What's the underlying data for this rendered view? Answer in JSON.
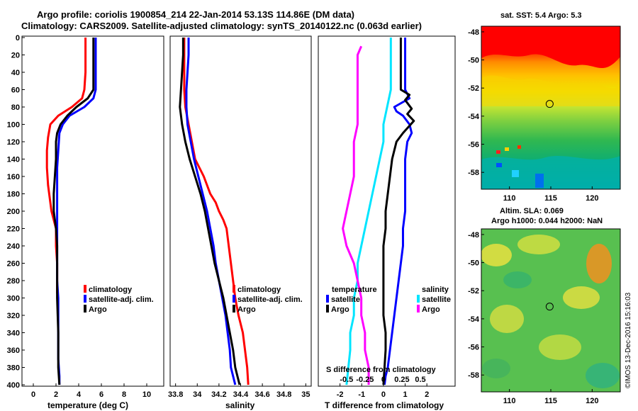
{
  "header": {
    "title_line1": "Argo profile: coriolis 1900854_214 22-Jan-2014 53.13S 114.86E (DM data)",
    "title_line2": "Climatology: CARS2009. Satellite-adjusted climatology: synTS_20140122.nc (0.063d earlier)"
  },
  "colors": {
    "climatology": "#ff0000",
    "satellite": "#0000ff",
    "argo": "#000000",
    "sal_satellite": "#00e5ff",
    "sal_argo": "#ff00ff"
  },
  "chart_data": [
    {
      "id": "temperature",
      "type": "line",
      "xlabel": "temperature (deg C)",
      "ylabel": "pressure",
      "xlim": [
        -1,
        11.5
      ],
      "ylim": [
        400,
        0
      ],
      "x_ticks": [
        0,
        2,
        4,
        6,
        8,
        10
      ],
      "x_tick_labels": [
        "0",
        "2",
        "4",
        "6",
        "8",
        "10"
      ],
      "y_ticks": [
        0,
        20,
        40,
        60,
        80,
        100,
        120,
        140,
        160,
        180,
        200,
        220,
        240,
        260,
        280,
        300,
        320,
        340,
        360,
        380,
        400
      ],
      "y_tick_labels": [
        "0",
        "20",
        "40",
        "60",
        "80",
        "100",
        "120",
        "140",
        "160",
        "180",
        "200",
        "220",
        "240",
        "260",
        "280",
        "300",
        "320",
        "340",
        "360",
        "380",
        "400"
      ],
      "legend": {
        "position": "bottom-right",
        "entries": [
          "climatology",
          "satellite-adj. clim.",
          "Argo"
        ]
      },
      "series": [
        {
          "name": "climatology",
          "key": "climatology",
          "x": [
            4.6,
            4.6,
            4.6,
            4.5,
            4.3,
            3.4,
            2.2,
            1.5,
            1.3,
            1.2,
            1.2,
            1.3,
            1.5,
            1.6,
            1.8,
            2.0,
            2.0,
            2.1,
            2.1
          ],
          "y": [
            0,
            20,
            40,
            60,
            70,
            80,
            90,
            100,
            115,
            130,
            150,
            170,
            190,
            200,
            210,
            220,
            240,
            260,
            295
          ]
        },
        {
          "name": "satellite-adj. clim.",
          "key": "satellite",
          "x": [
            5.5,
            5.5,
            5.5,
            5.5,
            5.3,
            4.5,
            3.2,
            2.6,
            2.3,
            2.2,
            2.1,
            2.1,
            2.1,
            2.1,
            2.1,
            2.1,
            2.2,
            2.2,
            2.2,
            2.3,
            2.3
          ],
          "y": [
            0,
            20,
            40,
            60,
            70,
            80,
            90,
            100,
            110,
            130,
            150,
            170,
            200,
            220,
            250,
            280,
            300,
            340,
            370,
            390,
            400
          ]
        },
        {
          "name": "Argo",
          "key": "argo",
          "x": [
            5.3,
            5.3,
            5.3,
            5.3,
            4.8,
            3.8,
            3.0,
            2.4,
            2.1,
            2.0,
            2.0,
            1.9,
            1.8,
            1.8,
            1.9,
            2.0,
            2.1,
            2.1,
            2.1,
            2.2,
            2.2,
            2.3
          ],
          "y": [
            0,
            20,
            40,
            60,
            70,
            80,
            90,
            100,
            110,
            120,
            140,
            160,
            180,
            200,
            210,
            220,
            240,
            260,
            300,
            340,
            380,
            400
          ]
        }
      ]
    },
    {
      "id": "salinity",
      "type": "line",
      "xlabel": "salinity",
      "xlim": [
        33.75,
        35.05
      ],
      "ylim": [
        400,
        0
      ],
      "x_ticks": [
        33.8,
        34,
        34.2,
        34.4,
        34.6,
        34.8,
        35
      ],
      "x_tick_labels": [
        "33.8",
        "34",
        "34.2",
        "34.4",
        "34.6",
        "34.8",
        "35"
      ],
      "legend": {
        "position": "bottom-right",
        "entries": [
          "climatology",
          "satellite-adj. clim.",
          "Argo"
        ]
      },
      "series": [
        {
          "name": "climatology",
          "key": "climatology",
          "x": [
            33.88,
            33.88,
            33.88,
            33.88,
            33.89,
            33.92,
            33.95,
            33.98,
            34.02,
            34.06,
            34.09,
            34.12,
            34.17,
            34.2,
            34.24,
            34.27,
            34.29,
            34.31,
            34.33,
            34.35,
            34.38,
            34.42,
            34.44,
            34.46,
            34.47
          ],
          "y": [
            0,
            20,
            40,
            60,
            80,
            100,
            120,
            140,
            150,
            160,
            170,
            180,
            190,
            200,
            210,
            220,
            240,
            260,
            280,
            300,
            320,
            340,
            360,
            380,
            400
          ]
        },
        {
          "name": "satellite-adj. clim.",
          "key": "satellite",
          "x": [
            33.92,
            33.92,
            33.91,
            33.9,
            33.9,
            33.91,
            33.94,
            33.97,
            34.01,
            34.05,
            34.09,
            34.12,
            34.15,
            34.17,
            34.2,
            34.23,
            34.26,
            34.28,
            34.3,
            34.31,
            34.33,
            34.35
          ],
          "y": [
            0,
            20,
            40,
            60,
            80,
            100,
            120,
            140,
            160,
            180,
            200,
            220,
            240,
            260,
            280,
            300,
            320,
            340,
            360,
            380,
            390,
            400
          ]
        },
        {
          "name": "Argo",
          "key": "argo",
          "x": [
            33.87,
            33.87,
            33.86,
            33.85,
            33.84,
            33.86,
            33.89,
            33.93,
            33.98,
            34.03,
            34.07,
            34.1,
            34.13,
            34.16,
            34.2,
            34.24,
            34.27,
            34.3,
            34.33,
            34.35,
            34.37,
            34.39
          ],
          "y": [
            0,
            20,
            40,
            60,
            80,
            100,
            120,
            140,
            160,
            180,
            200,
            220,
            240,
            260,
            280,
            300,
            320,
            340,
            360,
            380,
            390,
            400
          ]
        }
      ]
    },
    {
      "id": "difference",
      "type": "line",
      "xlabel": "T difference from climatology",
      "top_axis_label": "S difference from climatology",
      "xlim": [
        -3,
        3.3
      ],
      "ylim": [
        400,
        0
      ],
      "x_ticks": [
        -2,
        -1,
        0,
        1,
        2
      ],
      "x_tick_labels": [
        "-2",
        "-1",
        "0",
        "1",
        "2"
      ],
      "s_ticks": [
        -0.5,
        -0.25,
        0,
        0.25,
        0.5
      ],
      "s_tick_labels": [
        "-0.5",
        "-0.25",
        "0",
        "0.25",
        "0.5"
      ],
      "legend_temperature": {
        "title": "temperature",
        "entries": [
          "satellite",
          "Argo"
        ]
      },
      "legend_salinity": {
        "title": "salinity",
        "entries": [
          "satellite",
          "Argo"
        ]
      },
      "series": [
        {
          "name": "temperature satellite",
          "key": "satellite",
          "x": [
            1.0,
            1.0,
            1.0,
            1.0,
            1.2,
            0.5,
            0.6,
            0.9,
            1.2,
            1.3,
            1.1,
            1.0,
            1.0,
            1.0,
            1.0,
            0.9,
            0.9,
            0.8,
            0.7,
            0.6,
            0.5,
            0.4,
            0.3,
            0.2,
            0.1,
            0.05
          ],
          "y": [
            0,
            20,
            40,
            60,
            70,
            80,
            85,
            90,
            100,
            110,
            120,
            140,
            160,
            180,
            200,
            220,
            240,
            260,
            280,
            300,
            320,
            340,
            360,
            380,
            390,
            400
          ]
        },
        {
          "name": "temperature Argo",
          "key": "argo",
          "x": [
            0.8,
            0.8,
            0.8,
            0.8,
            1.2,
            1.0,
            1.3,
            1.1,
            1.4,
            0.9,
            0.6,
            0.4,
            0.3,
            0.2,
            0.1,
            0.1,
            0.0,
            0.0,
            0.0,
            0.0,
            0.0,
            0.1,
            0.1,
            0.05,
            0.0
          ],
          "y": [
            0,
            20,
            40,
            60,
            66,
            72,
            82,
            88,
            96,
            110,
            120,
            140,
            160,
            180,
            200,
            220,
            240,
            260,
            280,
            300,
            320,
            340,
            360,
            380,
            400
          ]
        },
        {
          "name": "salinity satellite",
          "key": "sal_satellite",
          "x": [
            0.1,
            0.1,
            0.1,
            0.1,
            0.05,
            0.0,
            0.0,
            -0.05,
            -0.1,
            -0.15,
            -0.2,
            -0.25,
            -0.3,
            -0.35,
            -0.35,
            -0.4,
            -0.4,
            -0.45,
            -0.45,
            -0.5
          ],
          "y": [
            0,
            20,
            40,
            60,
            80,
            100,
            120,
            140,
            160,
            180,
            200,
            220,
            240,
            260,
            280,
            300,
            320,
            340,
            360,
            400
          ]
        },
        {
          "name": "salinity Argo",
          "key": "sal_argo",
          "x": [
            -0.3,
            -0.35,
            -0.35,
            -0.35,
            -0.35,
            -0.35,
            -0.4,
            -0.4,
            -0.4,
            -0.45,
            -0.5,
            -0.55,
            -0.5,
            -0.4,
            -0.35,
            -0.3,
            -0.3,
            -0.25,
            -0.25,
            -0.2,
            -0.2
          ],
          "y": [
            10,
            20,
            40,
            60,
            80,
            100,
            120,
            140,
            160,
            180,
            200,
            220,
            240,
            260,
            280,
            300,
            320,
            340,
            360,
            380,
            400
          ]
        }
      ]
    }
  ],
  "maps": [
    {
      "id": "sst-map",
      "title": "sat. SST: 5.4 Argo: 5.3",
      "x_ticks": [
        110,
        115,
        120
      ],
      "x_tick_labels": [
        "110",
        "115",
        "120"
      ],
      "y_ticks": [
        -48,
        -50,
        -52,
        -54,
        -56,
        -58
      ],
      "y_tick_labels": [
        "-48",
        "-50",
        "-52",
        "-54",
        "-56",
        "-58"
      ],
      "marker": {
        "lon": 114.86,
        "lat": -53.13
      }
    },
    {
      "id": "sla-map",
      "title_line1": "Altim. SLA: 0.069",
      "title_line2": "Argo h1000: 0.044 h2000: NaN",
      "x_ticks": [
        110,
        115,
        120
      ],
      "x_tick_labels": [
        "110",
        "115",
        "120"
      ],
      "y_ticks": [
        -48,
        -50,
        -52,
        -54,
        -56,
        -58
      ],
      "y_tick_labels": [
        "-48",
        "-50",
        "-52",
        "-54",
        "-56",
        "-58"
      ],
      "marker": {
        "lon": 114.86,
        "lat": -53.13
      }
    }
  ],
  "credit": "©IMOS 13-Dec-2016 15:16:03"
}
